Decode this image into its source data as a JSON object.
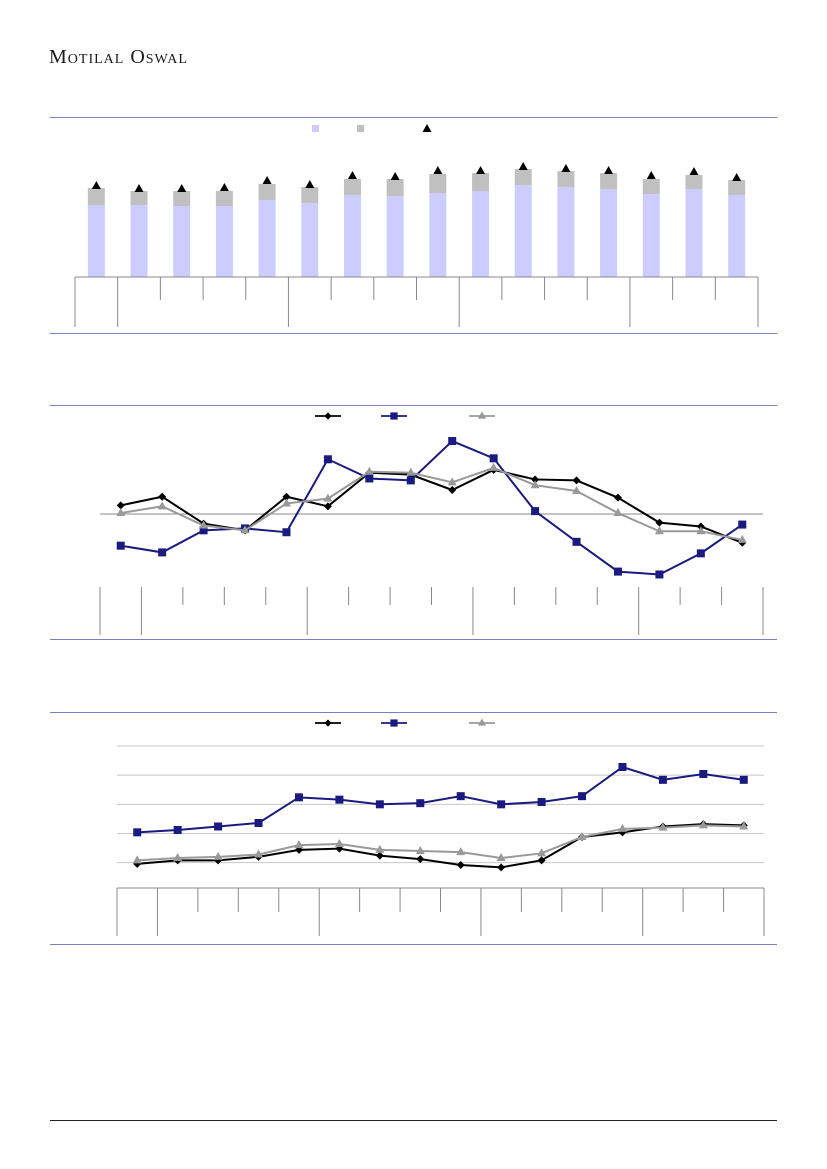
{
  "header": {
    "brand": "Motilal Oswal"
  },
  "chart_data": [
    {
      "type": "bar",
      "stacked": true,
      "num_categories": 16,
      "series": [
        {
          "kind": "bar",
          "color": "#ccccff",
          "values": [
            72,
            72,
            71,
            71,
            77,
            74,
            82,
            81,
            84,
            86,
            92,
            90,
            88,
            83,
            88,
            82
          ]
        },
        {
          "kind": "bar",
          "color": "#c0c0c0",
          "values": [
            17,
            14,
            15,
            15,
            16,
            16,
            16,
            17,
            19,
            18,
            16,
            16,
            16,
            15,
            14,
            15
          ]
        },
        {
          "kind": "marker",
          "marker": "triangle",
          "color": "#000000",
          "values": [
            91,
            88,
            88,
            89,
            96,
            92,
            101,
            100,
            106,
            106,
            110,
            108,
            106,
            101,
            105,
            99
          ]
        }
      ],
      "ylim": [
        0,
        150
      ],
      "group_boundaries": [
        1,
        5,
        9,
        13
      ],
      "grid": false
    },
    {
      "type": "line",
      "num_points": 16,
      "series": [
        {
          "color": "#000000",
          "marker": "diamond",
          "values": [
            0.9,
            1.8,
            -1.0,
            -1.7,
            1.8,
            0.8,
            4.3,
            4.1,
            2.5,
            4.6,
            3.6,
            3.5,
            1.7,
            -0.9,
            -1.3,
            -3.0
          ]
        },
        {
          "color": "#1a1a80",
          "marker": "square",
          "values": [
            -3.3,
            -4.0,
            -1.7,
            -1.5,
            -1.9,
            5.7,
            3.7,
            3.5,
            7.6,
            5.8,
            0.3,
            -2.9,
            -6.0,
            -6.3,
            -4.1,
            -1.1
          ]
        },
        {
          "color": "#999999",
          "marker": "triangle",
          "values": [
            0.1,
            0.8,
            -1.2,
            -1.7,
            1.1,
            1.6,
            4.4,
            4.3,
            3.3,
            4.8,
            3.0,
            2.4,
            0.1,
            -1.8,
            -1.8,
            -2.7
          ]
        }
      ],
      "ylim": [
        -10,
        10
      ],
      "zero_line": true,
      "group_boundaries": [
        1,
        5,
        9,
        13
      ],
      "grid": false
    },
    {
      "type": "line",
      "num_points": 16,
      "series": [
        {
          "color": "#000000",
          "marker": "diamond",
          "values": [
            -0.1,
            0.2,
            0.2,
            0.5,
            1.1,
            1.2,
            0.6,
            0.3,
            -0.2,
            -0.4,
            0.2,
            2.2,
            2.6,
            3.1,
            3.3,
            3.2
          ]
        },
        {
          "color": "#1a1a80",
          "marker": "square",
          "values": [
            2.6,
            2.8,
            3.1,
            3.4,
            5.6,
            5.4,
            5.0,
            5.1,
            5.7,
            5.0,
            5.2,
            5.7,
            8.2,
            7.1,
            7.6,
            7.1
          ]
        },
        {
          "color": "#999999",
          "marker": "triangle",
          "values": [
            0.2,
            0.4,
            0.5,
            0.7,
            1.5,
            1.6,
            1.1,
            1.0,
            0.9,
            0.4,
            0.8,
            2.2,
            2.9,
            3.0,
            3.2,
            3.1
          ]
        }
      ],
      "ylim": [
        -2,
        10
      ],
      "gridlines": [
        0,
        2.5,
        5,
        7.5,
        10
      ],
      "group_boundaries": [
        1,
        5,
        9,
        13
      ],
      "grid": true
    }
  ]
}
